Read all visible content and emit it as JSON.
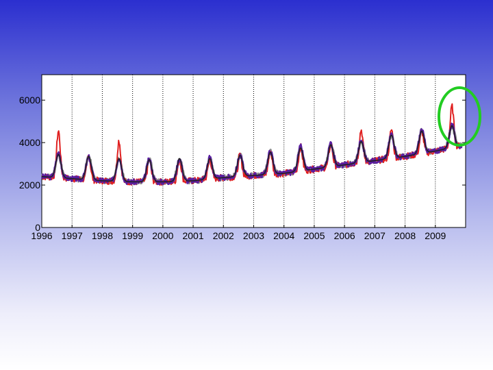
{
  "chart_data": {
    "type": "line",
    "title": "",
    "xlabel": "",
    "ylabel": "",
    "x_ticks": [
      "1996",
      "1997",
      "1998",
      "1999",
      "2000",
      "2001",
      "2002",
      "2003",
      "2004",
      "2005",
      "2006",
      "2007",
      "2008",
      "2009"
    ],
    "y_ticks": [
      "0",
      "2000",
      "4000",
      "6000"
    ],
    "xlim": [
      1996,
      2010
    ],
    "ylim": [
      0,
      7200
    ],
    "grid": "vertical dotted at each year",
    "legend": "none",
    "annual_peaks": [
      {
        "year": 1996,
        "red": 4550,
        "purple": 3500,
        "model": 3450
      },
      {
        "year": 1997,
        "red": 3400,
        "purple": 3300,
        "model": 3350
      },
      {
        "year": 1998,
        "red": 4100,
        "purple": 3300,
        "model": 3250
      },
      {
        "year": 1999,
        "red": 3200,
        "purple": 3200,
        "model": 3200
      },
      {
        "year": 2000,
        "red": 3200,
        "purple": 3250,
        "model": 3250
      },
      {
        "year": 2001,
        "red": 3200,
        "purple": 3300,
        "model": 3250
      },
      {
        "year": 2002,
        "red": 3400,
        "purple": 3400,
        "model": 3400
      },
      {
        "year": 2003,
        "red": 3600,
        "purple": 3600,
        "model": 3550
      },
      {
        "year": 2004,
        "red": 3800,
        "purple": 3800,
        "model": 3750
      },
      {
        "year": 2005,
        "red": 3950,
        "purple": 3950,
        "model": 3900
      },
      {
        "year": 2006,
        "red": 4600,
        "purple": 4100,
        "model": 4050
      },
      {
        "year": 2007,
        "red": 4600,
        "purple": 4400,
        "model": 4350
      },
      {
        "year": 2008,
        "red": 4550,
        "purple": 4600,
        "model": 4550
      },
      {
        "year": 2009,
        "red": 5700,
        "purple": 4800,
        "model": 4800
      }
    ],
    "annual_troughs": [
      {
        "year": 1996,
        "value": 2400
      },
      {
        "year": 1997,
        "value": 2300
      },
      {
        "year": 1998,
        "value": 2200
      },
      {
        "year": 1999,
        "value": 2150
      },
      {
        "year": 2000,
        "value": 2150
      },
      {
        "year": 2001,
        "value": 2200
      },
      {
        "year": 2002,
        "value": 2350
      },
      {
        "year": 2003,
        "value": 2450
      },
      {
        "year": 2004,
        "value": 2550
      },
      {
        "year": 2005,
        "value": 2750
      },
      {
        "year": 2006,
        "value": 2950
      },
      {
        "year": 2007,
        "value": 3150
      },
      {
        "year": 2008,
        "value": 3350
      },
      {
        "year": 2009,
        "value": 3600
      },
      {
        "year": 2010,
        "value": 3900
      }
    ],
    "peak_phase": 0.55,
    "series_colors": {
      "red": "#e02020",
      "purple": "#5a1ea0",
      "model": "#202020",
      "background": "#909090"
    },
    "highlight": {
      "color": "#22cc22",
      "year": 2009,
      "shape": "ellipse"
    }
  }
}
